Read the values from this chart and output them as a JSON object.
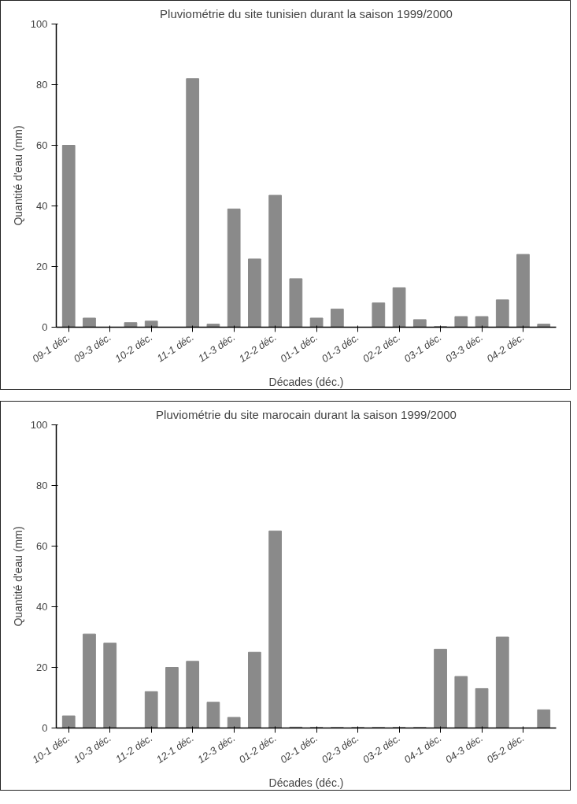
{
  "chart_data": [
    {
      "type": "bar",
      "title": "Pluviométrie du site tunisien durant la saison 1999/2000",
      "xlabel": "Décades (déc.)",
      "ylabel": "Quantité d'eau (mm)",
      "categories": [
        "09-1 déc.",
        null,
        "09-3 déc.",
        null,
        "10-2 déc.",
        null,
        "11-1 déc.",
        null,
        "11-3 déc.",
        null,
        "12-2 déc.",
        null,
        "01-1 déc.",
        null,
        "01-3 déc.",
        null,
        "02-2 déc.",
        null,
        "03-1 déc.",
        null,
        "03-3 déc.",
        null,
        "04-2 déc.",
        null
      ],
      "series": [
        {
          "color": "#8a8a8a",
          "values": [
            60,
            3,
            0,
            1.5,
            2,
            0,
            82,
            1,
            39,
            22.5,
            43.5,
            16,
            3,
            6,
            0,
            8,
            13,
            2.5,
            0.2,
            3.5,
            3.5,
            9,
            24,
            1
          ]
        }
      ],
      "ylim": [
        0,
        100
      ],
      "yticks": [
        0,
        20,
        40,
        60,
        80,
        100
      ],
      "grid": false
    },
    {
      "type": "bar",
      "title": "Pluviométrie du site marocain durant la saison 1999/2000",
      "xlabel": "Décades (déc.)",
      "ylabel": "Quantité d'eau (mm)",
      "categories": [
        "10-1 déc.",
        null,
        "10-3 déc.",
        null,
        "11-2 déc.",
        null,
        "12-1 déc.",
        null,
        "12-3 déc.",
        null,
        "01-2 déc.",
        null,
        "02-1 déc.",
        null,
        "02-3 déc.",
        null,
        "03-2 déc.",
        null,
        "04-1 déc.",
        null,
        "04-3 déc.",
        null,
        "05-2 déc.",
        null
      ],
      "series": [
        {
          "color": "#8a8a8a",
          "values": [
            4,
            31,
            28,
            0,
            12,
            20,
            22,
            8.5,
            3.5,
            25,
            65,
            0.3,
            0.2,
            0.2,
            0.2,
            0.2,
            0.2,
            0.2,
            26,
            17,
            13,
            30,
            0,
            6
          ]
        }
      ],
      "ylim": [
        0,
        100
      ],
      "yticks": [
        0,
        20,
        40,
        60,
        80,
        100
      ],
      "grid": false
    }
  ]
}
